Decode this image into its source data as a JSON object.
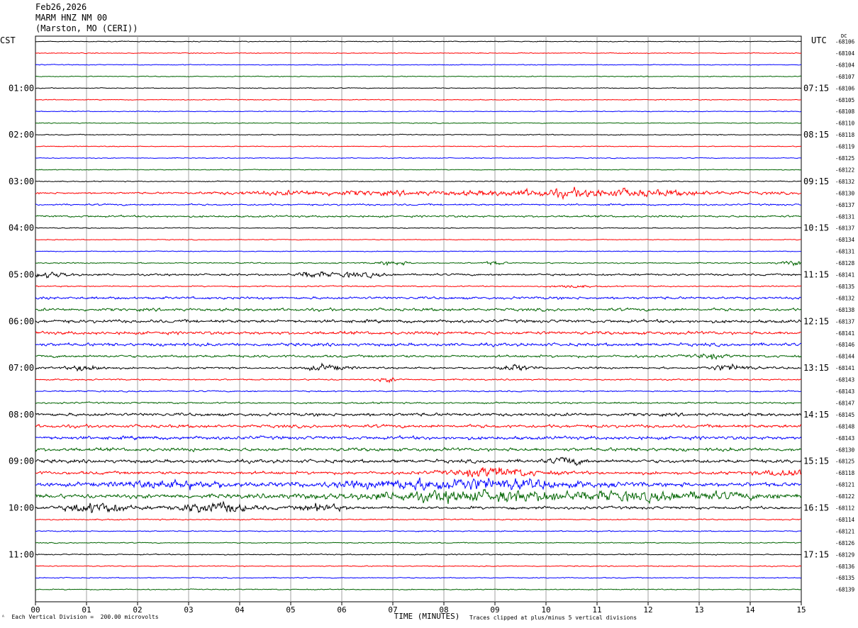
{
  "header": {
    "date": "Feb26,2026",
    "station": "MARM HNZ NM 00",
    "location": "(Marston, MO (CERI))"
  },
  "left_zone": "CST",
  "right_zone": "UTC",
  "dc_label": "DC",
  "footer": {
    "scale_note": "Each Vertical Division =  200.00 microvolts",
    "clip_note": "Traces clipped at plus/minus 5 vertical divisions"
  },
  "colors": {
    "trace_cycle": [
      "#000000",
      "#ff0000",
      "#0000ff",
      "#006400"
    ],
    "grid": "#a0a0a0"
  },
  "chart_data": {
    "type": "line",
    "title": "",
    "xlabel": "TIME (MINUTES)",
    "ylabel": "",
    "xlim": [
      0,
      15
    ],
    "x_ticks": [
      "00",
      "01",
      "02",
      "03",
      "04",
      "05",
      "06",
      "07",
      "08",
      "09",
      "10",
      "11",
      "12",
      "13",
      "14",
      "15"
    ],
    "traces_per_hour": 4,
    "left_hour_labels": [
      "01:00",
      "02:00",
      "03:00",
      "04:00",
      "05:00",
      "06:00",
      "07:00",
      "08:00",
      "09:00",
      "10:00",
      "11:00"
    ],
    "right_hour_labels": [
      "07:15",
      "08:15",
      "09:15",
      "10:15",
      "11:15",
      "12:15",
      "13:15",
      "14:15",
      "15:15",
      "16:15",
      "17:15"
    ],
    "series": [
      {
        "dc": "-68106",
        "level": 0.6
      },
      {
        "dc": "-68104",
        "level": 0.6
      },
      {
        "dc": "-68104",
        "level": 0.6
      },
      {
        "dc": "-68107",
        "level": 0.6
      },
      {
        "dc": "-68106",
        "level": 0.6
      },
      {
        "dc": "-68105",
        "level": 0.6
      },
      {
        "dc": "-68108",
        "level": 0.6
      },
      {
        "dc": "-68110",
        "level": 0.6
      },
      {
        "dc": "-68118",
        "level": 0.7
      },
      {
        "dc": "-68119",
        "level": 0.6
      },
      {
        "dc": "-68125",
        "level": 0.6
      },
      {
        "dc": "-68122",
        "level": 0.6
      },
      {
        "dc": "-68132",
        "level": 0.7
      },
      {
        "dc": "-68130",
        "level": 1.2,
        "bursts": [
          [
            5.0,
            1.6,
            1.6
          ],
          [
            7.2,
            2.6,
            2.0
          ],
          [
            10.8,
            1.8,
            4.0
          ],
          [
            12.3,
            2.5,
            1.6
          ]
        ]
      },
      {
        "dc": "-68137",
        "level": 1.2
      },
      {
        "dc": "-68131",
        "level": 1.4
      },
      {
        "dc": "-68137",
        "level": 0.7
      },
      {
        "dc": "-68134",
        "level": 0.6
      },
      {
        "dc": "-68131",
        "level": 0.6
      },
      {
        "dc": "-68128",
        "level": 0.8,
        "bursts": [
          [
            7.0,
            0.3,
            3.0
          ],
          [
            9.0,
            0.2,
            2.5
          ],
          [
            14.9,
            0.3,
            3.0
          ]
        ]
      },
      {
        "dc": "-68141",
        "level": 1.4,
        "bursts": [
          [
            0.3,
            0.4,
            3.5
          ],
          [
            5.4,
            0.3,
            4.0
          ],
          [
            6.3,
            0.5,
            3.0
          ]
        ]
      },
      {
        "dc": "-68135",
        "level": 0.9,
        "bursts": [
          [
            10.5,
            0.3,
            2.0
          ]
        ]
      },
      {
        "dc": "-68132",
        "level": 1.8
      },
      {
        "dc": "-68138",
        "level": 2.0
      },
      {
        "dc": "-68137",
        "level": 2.2
      },
      {
        "dc": "-68141",
        "level": 2.2
      },
      {
        "dc": "-68146",
        "level": 2.2
      },
      {
        "dc": "-68144",
        "level": 1.8,
        "bursts": [
          [
            13.2,
            0.3,
            3.0
          ]
        ]
      },
      {
        "dc": "-68141",
        "level": 1.4,
        "bursts": [
          [
            1.0,
            0.3,
            5.0
          ],
          [
            5.7,
            0.4,
            4.0
          ],
          [
            9.4,
            0.3,
            4.0
          ],
          [
            13.6,
            0.4,
            4.0
          ]
        ]
      },
      {
        "dc": "-68143",
        "level": 1.0,
        "bursts": [
          [
            6.9,
            0.2,
            3.0
          ]
        ]
      },
      {
        "dc": "-68143",
        "level": 1.0
      },
      {
        "dc": "-68147",
        "level": 1.2
      },
      {
        "dc": "-68145",
        "level": 2.2
      },
      {
        "dc": "-68148",
        "level": 2.2
      },
      {
        "dc": "-68143",
        "level": 2.4
      },
      {
        "dc": "-68130",
        "level": 2.4
      },
      {
        "dc": "-68125",
        "level": 2.4,
        "bursts": [
          [
            10.4,
            0.3,
            5.0
          ]
        ]
      },
      {
        "dc": "-68118",
        "level": 2.2,
        "bursts": [
          [
            9.0,
            0.8,
            6.0
          ],
          [
            14.7,
            0.4,
            5.0
          ]
        ]
      },
      {
        "dc": "-68121",
        "level": 3.0,
        "bursts": [
          [
            8.3,
            2.0,
            7.0
          ],
          [
            2.8,
            1.0,
            4.0
          ]
        ]
      },
      {
        "dc": "-68122",
        "level": 3.0,
        "bursts": [
          [
            8.6,
            2.4,
            6.0
          ],
          [
            12.4,
            2.0,
            4.0
          ]
        ]
      },
      {
        "dc": "-68112",
        "level": 2.0,
        "bursts": [
          [
            1.2,
            0.6,
            7.0
          ],
          [
            3.5,
            0.7,
            7.0
          ],
          [
            5.6,
            0.4,
            5.0
          ]
        ]
      },
      {
        "dc": "-68114",
        "level": 0.9
      },
      {
        "dc": "-68121",
        "level": 0.8
      },
      {
        "dc": "-68126",
        "level": 0.7
      },
      {
        "dc": "-68129",
        "level": 0.8
      },
      {
        "dc": "-68136",
        "level": 0.7
      },
      {
        "dc": "-68135",
        "level": 0.7
      },
      {
        "dc": "-68139",
        "level": 0.7
      }
    ]
  }
}
